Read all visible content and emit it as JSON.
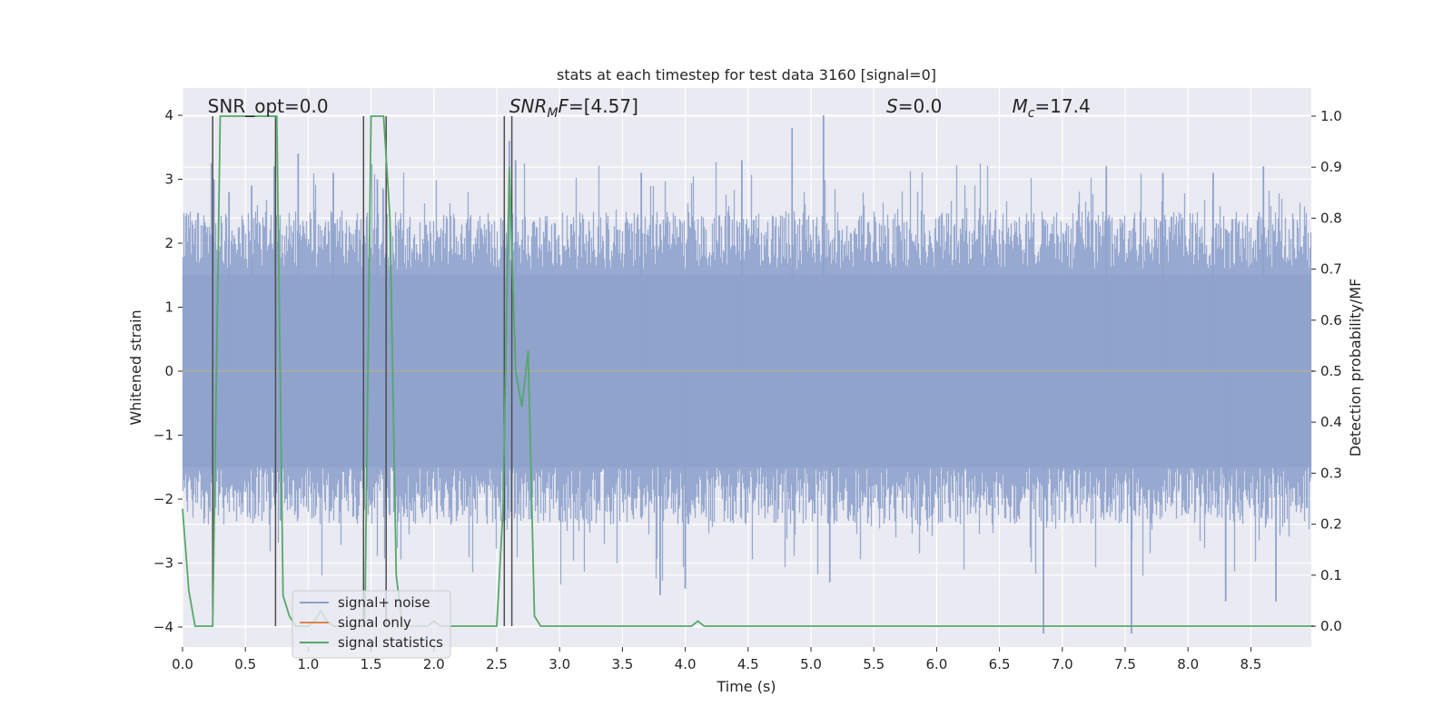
{
  "chart_data": {
    "type": "line",
    "title": "stats at each timestep for test data 3160 [signal=0]",
    "xlabel": "Time (s)",
    "ylabel_left": "Whitened strain",
    "ylabel_right": "Detection probability/MF",
    "xlim": [
      0,
      9.0
    ],
    "ylim_left": [
      -4.4,
      4.4
    ],
    "ylim_right": [
      -0.05,
      1.05
    ],
    "xticks": [
      "0.0",
      "0.5",
      "1.0",
      "1.5",
      "2.0",
      "2.5",
      "3.0",
      "3.5",
      "4.0",
      "4.5",
      "5.0",
      "5.5",
      "6.0",
      "6.5",
      "7.0",
      "7.5",
      "8.0",
      "8.5"
    ],
    "yticks_left": [
      "−4",
      "−3",
      "−2",
      "−1",
      "0",
      "1",
      "2",
      "3",
      "4"
    ],
    "yticks_right": [
      "0.0",
      "0.1",
      "0.2",
      "0.3",
      "0.4",
      "0.5",
      "0.6",
      "0.7",
      "0.8",
      "0.9",
      "1.0"
    ],
    "grid": true,
    "legend_position": "lower-left",
    "annotations": [
      {
        "text": "SNR_opt=0.0",
        "x": 0.2
      },
      {
        "text": "SNR_MF=[4.57]",
        "x": 2.6
      },
      {
        "text": "S=0.0",
        "x": 5.6
      },
      {
        "text": "M_c=17.4",
        "x": 6.6
      }
    ],
    "series": [
      {
        "name": "signal+ noise",
        "color": "#8ea2cc",
        "axis": "left",
        "description_kind": "whitened noise trace",
        "peak_values": [
          {
            "x": 0.25,
            "y": 3.0
          },
          {
            "x": 0.37,
            "y": 2.8
          },
          {
            "x": 0.55,
            "y": 2.9
          },
          {
            "x": 0.73,
            "y": 3.2
          },
          {
            "x": 0.92,
            "y": 3.4
          },
          {
            "x": 1.2,
            "y": 3.1
          },
          {
            "x": 1.55,
            "y": 3.0
          },
          {
            "x": 2.6,
            "y": 3.6
          },
          {
            "x": 2.65,
            "y": 3.3
          },
          {
            "x": 3.65,
            "y": 3.1
          },
          {
            "x": 4.45,
            "y": 3.3
          },
          {
            "x": 4.85,
            "y": 3.8
          },
          {
            "x": 5.1,
            "y": 4.0
          },
          {
            "x": 7.35,
            "y": 3.2
          },
          {
            "x": 7.8,
            "y": 3.1
          },
          {
            "x": 8.2,
            "y": 3.1
          },
          {
            "x": 8.6,
            "y": 3.2
          },
          {
            "x": 3.8,
            "y": -3.5
          },
          {
            "x": 4.0,
            "y": -3.4
          },
          {
            "x": 5.15,
            "y": -3.3
          },
          {
            "x": 6.85,
            "y": -4.1
          },
          {
            "x": 7.55,
            "y": -4.1
          },
          {
            "x": 8.3,
            "y": -3.6
          },
          {
            "x": 8.7,
            "y": -3.6
          }
        ]
      },
      {
        "name": "signal only",
        "color": "#dd8452",
        "axis": "left",
        "x": [
          0,
          9.0
        ],
        "y": [
          0,
          0
        ]
      },
      {
        "name": "signal statistics",
        "color": "#55a868",
        "axis": "right",
        "x": [
          0.0,
          0.05,
          0.1,
          0.15,
          0.2,
          0.24,
          0.3,
          0.35,
          0.4,
          0.45,
          0.5,
          0.55,
          0.6,
          0.65,
          0.7,
          0.75,
          0.8,
          0.85,
          0.9,
          0.95,
          1.0,
          1.05,
          1.1,
          1.15,
          1.2,
          1.25,
          1.3,
          1.35,
          1.4,
          1.45,
          1.5,
          1.55,
          1.6,
          1.65,
          1.7,
          1.75,
          1.8,
          1.85,
          1.9,
          1.95,
          2.0,
          2.05,
          2.1,
          2.2,
          2.3,
          2.4,
          2.5,
          2.55,
          2.6,
          2.65,
          2.7,
          2.75,
          2.8,
          2.85,
          2.9,
          2.95,
          3.0,
          3.5,
          4.0,
          4.05,
          4.1,
          4.15,
          4.2,
          4.5,
          5.0,
          5.5,
          5.7,
          5.8,
          6.0,
          7.0,
          8.0,
          8.5,
          9.0
        ],
        "y": [
          0.23,
          0.07,
          0.0,
          0.0,
          0.0,
          0.0,
          1.0,
          1.0,
          1.0,
          1.0,
          1.0,
          1.0,
          1.0,
          1.0,
          1.0,
          1.0,
          0.06,
          0.02,
          0.0,
          0.0,
          0.0,
          0.01,
          0.03,
          0.01,
          0.0,
          0.0,
          0.0,
          0.0,
          0.0,
          0.0,
          1.0,
          1.0,
          1.0,
          0.8,
          0.1,
          0.0,
          0.0,
          0.0,
          0.0,
          0.0,
          0.01,
          0.0,
          0.0,
          0.0,
          0.0,
          0.0,
          0.0,
          0.23,
          0.9,
          0.5,
          0.43,
          0.54,
          0.02,
          0.0,
          0.0,
          0.0,
          0.0,
          0.0,
          0.0,
          0.0,
          0.01,
          0.0,
          0.0,
          0.0,
          0.0,
          0.0,
          0.0,
          0.0,
          0.0,
          0.0,
          0.0,
          0.0,
          0.0
        ]
      }
    ],
    "vertical_markers_x": [
      0.24,
      0.74,
      1.44,
      1.62,
      2.56,
      2.62
    ]
  },
  "legend": {
    "items": [
      {
        "label": "signal+ noise",
        "color": "#8ea2cc"
      },
      {
        "label": "signal only",
        "color": "#dd8452"
      },
      {
        "label": "signal statistics",
        "color": "#55a868"
      }
    ]
  },
  "colors": {
    "plot_background": "#eaeaf2",
    "grid": "#ffffff",
    "marker_line": "#4d4d4d"
  }
}
